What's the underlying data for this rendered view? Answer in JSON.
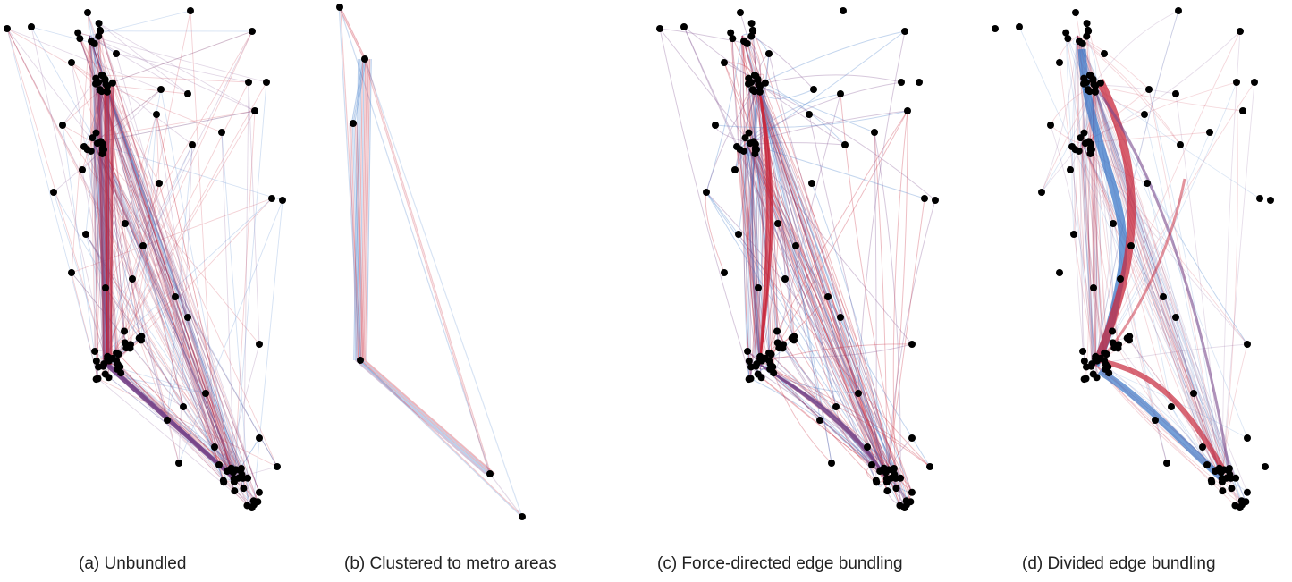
{
  "panels": [
    {
      "id": "a",
      "caption": "(a)  Unbundled"
    },
    {
      "id": "b",
      "caption": "(b)  Clustered to metro areas"
    },
    {
      "id": "c",
      "caption": "(c)  Force-directed edge bundling"
    },
    {
      "id": "d",
      "caption": "(d)  Divided edge bundling"
    }
  ],
  "colors": {
    "node": "#000000",
    "edge_red": "#c8283c",
    "edge_blue": "#3c78c8",
    "edge_purple": "#7a4a8c"
  }
}
